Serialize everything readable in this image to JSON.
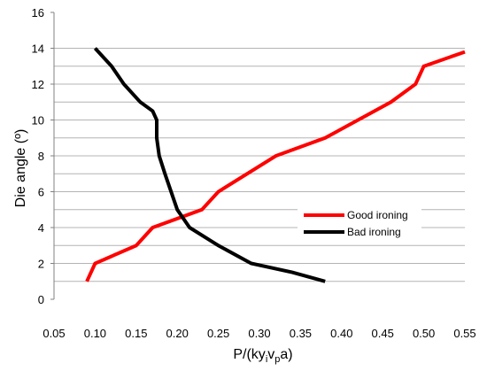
{
  "chart_data": {
    "type": "line",
    "title": "",
    "xlabel": {
      "main": "P/(ky",
      "sub1": "i",
      "mid": "v",
      "sub2": "p",
      "end": "a)"
    },
    "ylabel": "Die angle (º)",
    "xlim": [
      0.05,
      0.55
    ],
    "ylim": [
      0,
      16
    ],
    "x_ticks": [
      "0.05",
      "0.10",
      "0.15",
      "0.20",
      "0.25",
      "0.30",
      "0.35",
      "0.40",
      "0.45",
      "0.50",
      "0.55"
    ],
    "y_ticks": [
      "0",
      "2",
      "4",
      "6",
      "8",
      "10",
      "12",
      "14",
      "16"
    ],
    "legend_position": "right",
    "grid": "horizontal gridlines every 1 unit from 1 to 14",
    "series": [
      {
        "name": "Good ironing",
        "color": "#ff0000",
        "x": [
          0.09,
          0.1,
          0.15,
          0.17,
          0.23,
          0.25,
          0.32,
          0.38,
          0.46,
          0.49,
          0.5,
          0.55
        ],
        "y": [
          1.0,
          2.0,
          3.0,
          4.0,
          5.0,
          6.0,
          8.0,
          9.0,
          11.0,
          12.0,
          13.0,
          13.8
        ]
      },
      {
        "name": "Bad ironing",
        "color": "#000000",
        "x": [
          0.38,
          0.34,
          0.29,
          0.25,
          0.215,
          0.2,
          0.185,
          0.178,
          0.175,
          0.175,
          0.17,
          0.155,
          0.135,
          0.12,
          0.1
        ],
        "y": [
          1.0,
          1.5,
          2.0,
          3.0,
          4.0,
          5.0,
          7.0,
          8.0,
          9.0,
          10.0,
          10.5,
          11.0,
          12.0,
          13.0,
          14.0
        ]
      }
    ]
  }
}
